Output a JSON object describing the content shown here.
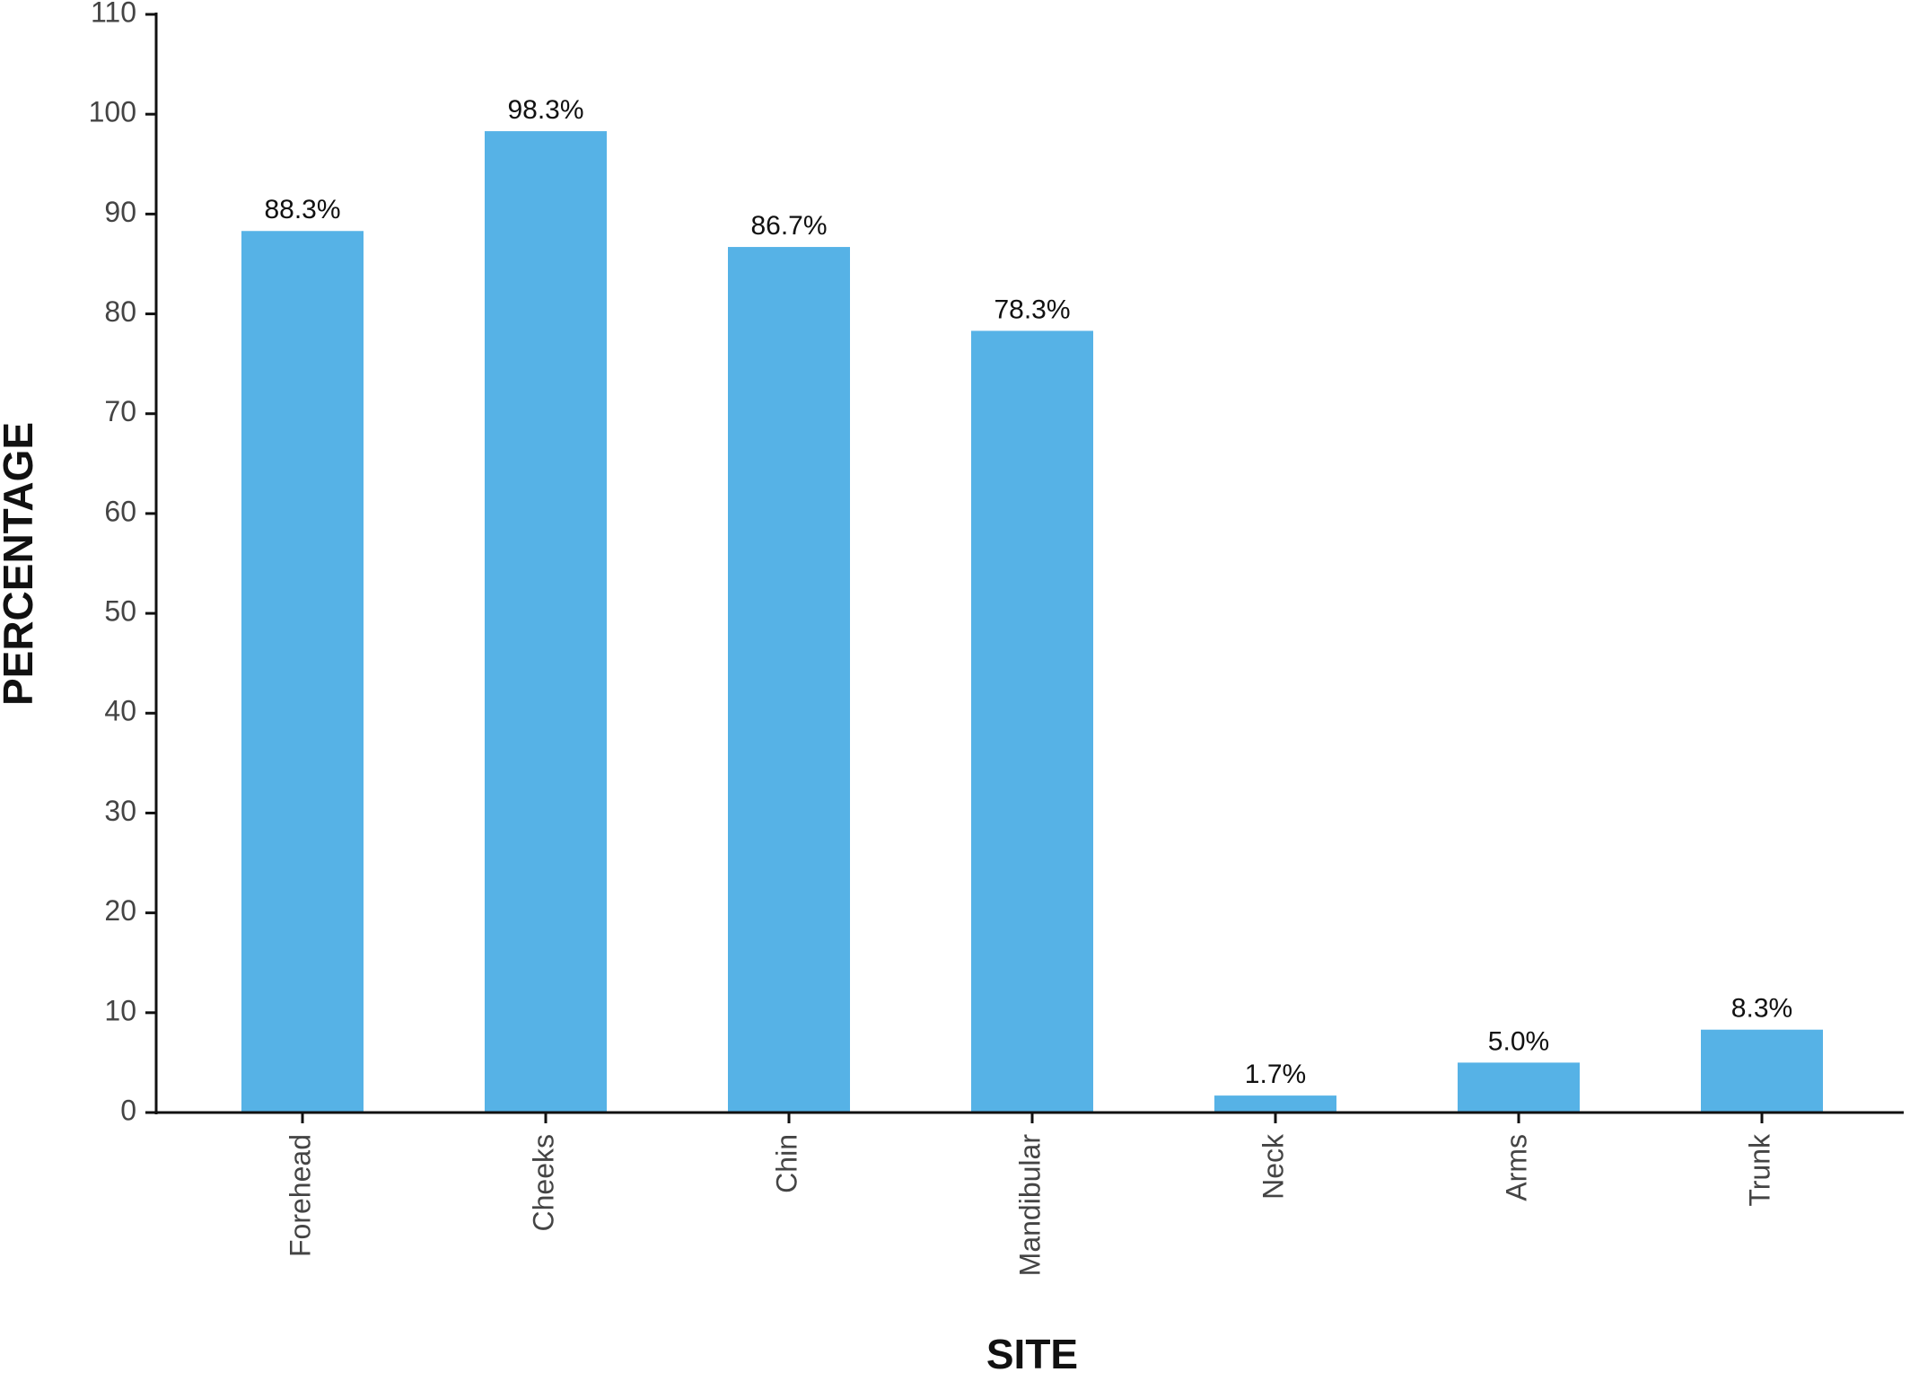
{
  "chart_data": {
    "type": "bar",
    "x_label": "SITE",
    "y_label": "PERCENTAGE",
    "categories": [
      "Forehead",
      "Cheeks",
      "Chin",
      "Mandibular",
      "Neck",
      "Arms",
      "Trunk"
    ],
    "values": [
      88.3,
      98.3,
      86.7,
      78.3,
      1.7,
      5.0,
      8.3
    ],
    "value_labels": [
      "88.3%",
      "98.3%",
      "86.7%",
      "78.3%",
      "1.7%",
      "5.0%",
      "8.3%"
    ],
    "color": "#56b2e6",
    "ylim": [
      0,
      110
    ],
    "yticks": [
      0,
      10,
      20,
      30,
      40,
      50,
      60,
      70,
      80,
      90,
      100,
      110
    ],
    "grid": false
  }
}
